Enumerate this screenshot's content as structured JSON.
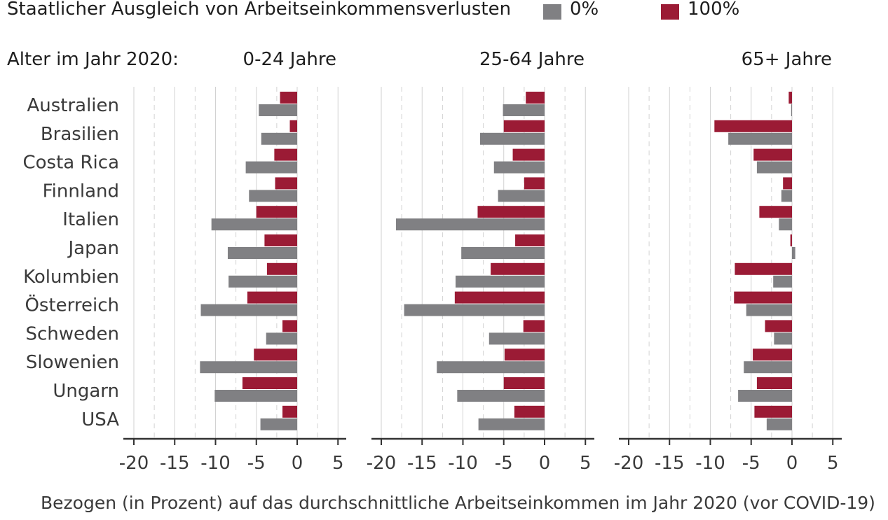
{
  "legend": {
    "title": "Staatlicher Ausgleich von Arbeitseinkommensverlusten",
    "items": [
      {
        "label": "0%",
        "color": "#808083"
      },
      {
        "label": "100%",
        "color": "#9b1b35"
      }
    ]
  },
  "age_label": "Alter im Jahr 2020:",
  "x_caption": "Bezogen (in Prozent) auf das durchschnittliche Arbeitseinkommen im Jahr 2020 (vor COVID-19)",
  "chart_data": {
    "type": "bar",
    "orientation": "horizontal",
    "categories": [
      "Australien",
      "Brasilien",
      "Costa Rica",
      "Finnland",
      "Italien",
      "Japan",
      "Kolumbien",
      "Österreich",
      "Schweden",
      "Slowenien",
      "Ungarn",
      "USA"
    ],
    "xlim": [
      -21,
      6
    ],
    "xticks": [
      -20,
      -15,
      -10,
      -5,
      0,
      5
    ],
    "xtick_labels": [
      "-20",
      "-15",
      "-10",
      "-5",
      "0",
      "5"
    ],
    "grid": true,
    "legend_placement": "top",
    "panels": [
      {
        "title": "0-24 Jahre",
        "series": [
          {
            "name": "100%",
            "values": [
              -2.1,
              -0.9,
              -2.8,
              -2.7,
              -5.0,
              -4.0,
              -3.7,
              -6.1,
              -1.8,
              -5.3,
              -6.7,
              -1.8
            ]
          },
          {
            "name": "0%",
            "values": [
              -4.7,
              -4.4,
              -6.3,
              -5.9,
              -10.5,
              -8.5,
              -8.4,
              -11.8,
              -3.8,
              -11.9,
              -10.1,
              -4.5
            ]
          }
        ]
      },
      {
        "title": "25-64 Jahre",
        "series": [
          {
            "name": "100%",
            "values": [
              -2.3,
              -5.0,
              -3.9,
              -2.5,
              -8.2,
              -3.6,
              -6.6,
              -11.0,
              -2.6,
              -4.9,
              -5.0,
              -3.7
            ]
          },
          {
            "name": "0%",
            "values": [
              -5.1,
              -7.9,
              -6.2,
              -5.7,
              -18.2,
              -10.2,
              -10.9,
              -17.2,
              -6.8,
              -13.2,
              -10.7,
              -8.1
            ]
          }
        ]
      },
      {
        "title": "65+ Jahre",
        "series": [
          {
            "name": "100%",
            "values": [
              -0.4,
              -9.5,
              -4.7,
              -1.1,
              -4.0,
              -0.2,
              -7.0,
              -7.1,
              -3.3,
              -4.8,
              -4.3,
              -4.6
            ]
          },
          {
            "name": "0%",
            "values": [
              -0.1,
              -7.8,
              -4.3,
              -1.3,
              -1.6,
              0.4,
              -2.3,
              -5.6,
              -2.2,
              -5.9,
              -6.6,
              -3.1
            ]
          }
        ]
      }
    ]
  }
}
